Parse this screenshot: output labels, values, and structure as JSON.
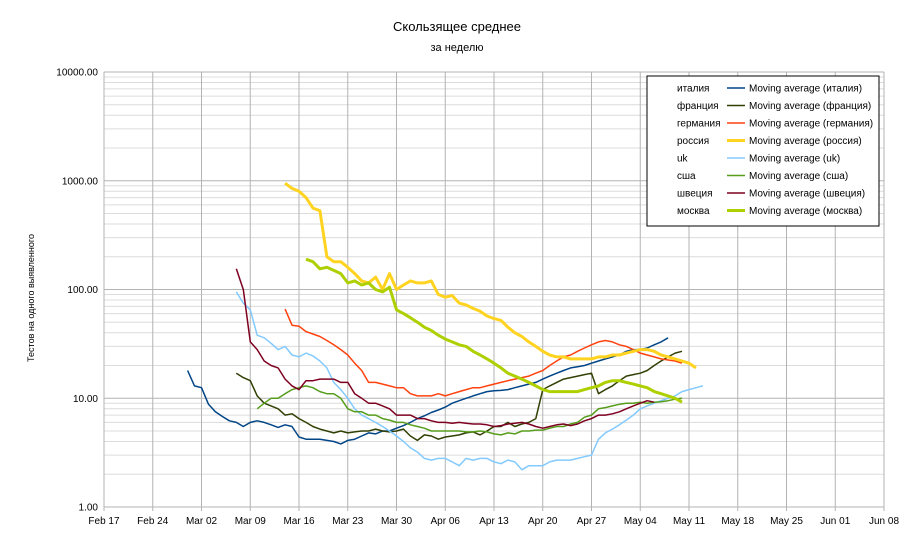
{
  "chart_data": {
    "type": "line",
    "title": "Скользящее среднее",
    "subtitle": "за неделю",
    "ylabel": "Тестов на одного выявленного",
    "xlabel": "",
    "y_scale": "log",
    "ylim": [
      1,
      10000
    ],
    "y_ticks": [
      1,
      10,
      100,
      1000,
      10000
    ],
    "y_tick_labels": [
      "1.00",
      "10.00",
      "100.00",
      "1000.00",
      "10000.00"
    ],
    "x_ticks": [
      "2020-02-17",
      "2020-02-24",
      "2020-03-02",
      "2020-03-09",
      "2020-03-16",
      "2020-03-23",
      "2020-03-30",
      "2020-04-06",
      "2020-04-13",
      "2020-04-20",
      "2020-04-27",
      "2020-05-04",
      "2020-05-11",
      "2020-05-18",
      "2020-05-25",
      "2020-06-01",
      "2020-06-08"
    ],
    "x_tick_labels": [
      "Feb 17",
      "Feb 24",
      "Mar 02",
      "Mar 09",
      "Mar 16",
      "Mar 23",
      "Mar 30",
      "Apr 06",
      "Apr 13",
      "Apr 20",
      "Apr 27",
      "May 04",
      "May 11",
      "May 18",
      "May 25",
      "Jun 01",
      "Jun 08"
    ],
    "grid": true,
    "legend_position": "top-right",
    "legend": [
      {
        "label": "италия",
        "series_label": "Moving average (италия)",
        "color": "#004586",
        "width": 1.5
      },
      {
        "label": "франция",
        "series_label": "Moving average (франция)",
        "color": "#314004",
        "width": 1.5
      },
      {
        "label": "германия",
        "series_label": "Moving average (германия)",
        "color": "#ff420e",
        "width": 1.5
      },
      {
        "label": "россия",
        "series_label": "Moving average (россия)",
        "color": "#ffd320",
        "width": 3
      },
      {
        "label": "uk",
        "series_label": "Moving average (uk)",
        "color": "#83caff",
        "width": 1.5
      },
      {
        "label": "сша",
        "series_label": "Moving average (сша)",
        "color": "#579d1c",
        "width": 1.5
      },
      {
        "label": "швеция",
        "series_label": "Moving average (швеция)",
        "color": "#7e0021",
        "width": 1.5
      },
      {
        "label": "москва",
        "series_label": "Moving average (москва)",
        "color": "#aecf00",
        "width": 3
      }
    ],
    "series": [
      {
        "name": "Moving average (италия)",
        "color": "#004586",
        "width": 1.5,
        "start": "2020-02-29",
        "values": [
          18,
          13,
          12.5,
          8.8,
          7.5,
          6.8,
          6.2,
          6,
          5.5,
          6,
          6.2,
          6,
          5.7,
          5.4,
          5.7,
          5.5,
          4.4,
          4.2,
          4.2,
          4.2,
          4.1,
          4,
          3.8,
          4.1,
          4.2,
          4.5,
          4.8,
          4.7,
          5,
          5,
          5.3,
          5.6,
          6,
          6.5,
          6.9,
          7.4,
          7.8,
          8.3,
          9,
          9.5,
          10,
          10.5,
          11,
          11.5,
          11.7,
          11.8,
          12,
          12.5,
          13,
          13.5,
          14,
          15,
          16,
          17,
          18,
          19,
          19.5,
          20,
          21,
          22,
          23,
          24,
          25,
          27,
          28,
          28,
          29,
          31,
          33,
          36
        ]
      },
      {
        "name": "Moving average (франция)",
        "color": "#314004",
        "width": 1.5,
        "start": "2020-03-07",
        "values": [
          17,
          15.5,
          14.5,
          10.5,
          9,
          8.5,
          8,
          7,
          7.2,
          6.5,
          6,
          5.5,
          5.2,
          5,
          4.8,
          5,
          4.8,
          4.9,
          5,
          5,
          5.2,
          5,
          4.9,
          5,
          5.2,
          4.5,
          4.1,
          4.6,
          4.5,
          4.2,
          4.4,
          4.5,
          4.6,
          4.8,
          4.9,
          4.6,
          5,
          5.5,
          5.5,
          6,
          5.5,
          5.8,
          6,
          6.5,
          12,
          13,
          14,
          15,
          15.5,
          16,
          16.5,
          17,
          11,
          12,
          13,
          14.5,
          16,
          16.5,
          17,
          18,
          20,
          22,
          24,
          26,
          27
        ]
      },
      {
        "name": "Moving average (германия)",
        "color": "#ff420e",
        "width": 1.5,
        "start": "2020-03-14",
        "values": [
          66,
          47,
          46,
          41,
          39,
          37,
          34,
          31,
          28,
          25,
          21,
          18,
          14,
          14,
          13.5,
          13,
          12.5,
          12.5,
          11,
          10.5,
          10.5,
          10.5,
          11,
          10.5,
          11,
          11.5,
          12,
          12.5,
          12.5,
          13,
          13.5,
          14,
          14.5,
          15,
          15.5,
          16,
          17,
          18,
          20,
          22,
          24,
          25,
          27,
          29,
          31,
          33,
          34,
          33,
          31,
          30,
          28,
          26,
          25,
          24,
          23,
          22.5,
          22,
          21
        ]
      },
      {
        "name": "Moving average (россия)",
        "color": "#ffd320",
        "width": 3,
        "start": "2020-03-14",
        "values": [
          950,
          850,
          800,
          700,
          560,
          530,
          200,
          180,
          180,
          160,
          140,
          120,
          115,
          130,
          100,
          140,
          100,
          110,
          120,
          115,
          115,
          120,
          90,
          85,
          88,
          75,
          72,
          67,
          63,
          57,
          54,
          52,
          45,
          40,
          37,
          33,
          30,
          27,
          25,
          24,
          24,
          23,
          23,
          23,
          23,
          24,
          24,
          25,
          25,
          26,
          27,
          28,
          28,
          27,
          25,
          24,
          23,
          22,
          21,
          19
        ]
      },
      {
        "name": "Moving average (uk)",
        "color": "#83caff",
        "width": 1.5,
        "start": "2020-03-07",
        "values": [
          95,
          75,
          65,
          38,
          36,
          32,
          28,
          30,
          25,
          24,
          26,
          24.5,
          22,
          19,
          14,
          12,
          10,
          8,
          7,
          6.5,
          6,
          5.5,
          5,
          4.5,
          4,
          3.5,
          3.2,
          2.8,
          2.7,
          2.8,
          2.8,
          2.6,
          2.4,
          2.8,
          2.7,
          2.8,
          2.8,
          2.6,
          2.5,
          2.7,
          2.6,
          2.2,
          2.4,
          2.4,
          2.4,
          2.6,
          2.7,
          2.7,
          2.7,
          2.8,
          2.9,
          3,
          4.2,
          4.8,
          5.2,
          5.7,
          6.3,
          7,
          8,
          8.5,
          9,
          9.5,
          10,
          10.5,
          11.5,
          12,
          12.5,
          13
        ]
      },
      {
        "name": "Moving average (сша)",
        "color": "#579d1c",
        "width": 1.5,
        "start": "2020-03-10",
        "values": [
          8,
          9,
          10,
          10,
          11,
          12,
          12.5,
          13,
          12.5,
          11.5,
          11,
          11,
          10,
          8,
          7.5,
          7.5,
          7,
          7,
          6.5,
          6.3,
          6,
          6,
          5.7,
          5.5,
          5.3,
          5,
          5,
          5,
          5,
          5,
          4.9,
          4.9,
          5,
          4.9,
          4.7,
          4.6,
          4.8,
          4.7,
          5,
          5,
          5.1,
          5.1,
          5.3,
          5.5,
          5.5,
          5.8,
          6,
          6.7,
          7,
          8,
          8.2,
          8.5,
          8.8,
          9,
          9,
          9.2,
          9,
          9.2,
          9.3,
          9.5,
          9.8,
          10
        ]
      },
      {
        "name": "Moving average (швеция)",
        "color": "#7e0021",
        "width": 1.5,
        "start": "2020-03-07",
        "values": [
          155,
          100,
          33,
          28,
          22,
          20,
          19,
          15,
          13,
          12,
          14.5,
          14.5,
          15,
          15,
          15,
          14,
          14,
          11,
          10,
          9,
          9,
          8.5,
          8,
          7,
          7,
          7,
          6.5,
          6.5,
          6.2,
          6,
          6,
          5.9,
          6,
          5.9,
          5.8,
          5.8,
          5.7,
          5.5,
          5.6,
          5.8,
          5.9,
          6,
          5.8,
          5.5,
          5.3,
          5.5,
          5.7,
          5.8,
          5.6,
          5.8,
          6.2,
          6.5,
          7,
          7,
          7.2,
          7.5,
          8,
          8.5,
          9,
          9.5,
          9.2
        ]
      },
      {
        "name": "Moving average (москва)",
        "color": "#aecf00",
        "width": 3,
        "start": "2020-03-17",
        "values": [
          190,
          180,
          155,
          160,
          150,
          140,
          115,
          120,
          110,
          115,
          100,
          95,
          105,
          65,
          60,
          55,
          50,
          45,
          42,
          38,
          35,
          33,
          31,
          30,
          27,
          25,
          23,
          21,
          19,
          17,
          16,
          15,
          14,
          13,
          12,
          11.5,
          11.5,
          11.5,
          11.5,
          11.5,
          12,
          12.5,
          13,
          14,
          14.5,
          14.5,
          14,
          13.5,
          13,
          12.5,
          11.5,
          11,
          10.5,
          10,
          9.2
        ]
      }
    ]
  }
}
